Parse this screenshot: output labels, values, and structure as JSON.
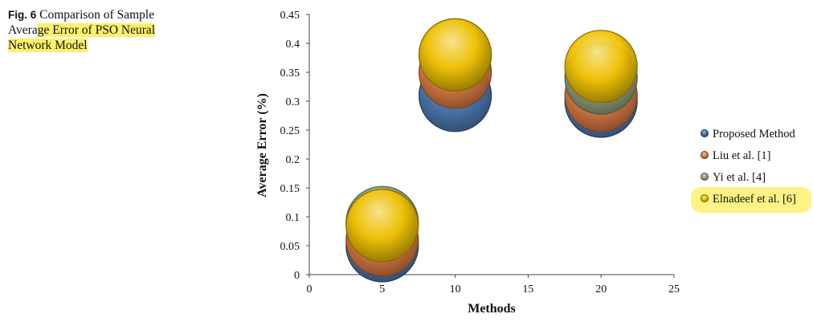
{
  "caption": {
    "fig_label": "Fig. 6",
    "text_part1": "Comparison of Sample",
    "text_part2": "Avera",
    "text_part3": "ge Error of PSO Neural",
    "text_part4": "Network Model"
  },
  "chart_data": {
    "type": "bubble",
    "title": "",
    "xlabel": "Methods",
    "ylabel": "Average Error (%)",
    "xlim": [
      0,
      25
    ],
    "ylim": [
      0,
      0.45
    ],
    "x_ticks": [
      "0",
      "5",
      "10",
      "15",
      "20",
      "25"
    ],
    "y_ticks": [
      "0",
      "0.05",
      "0.1",
      "0.15",
      "0.2",
      "0.25",
      "0.3",
      "0.35",
      "0.4",
      "0.45"
    ],
    "legend_position": "right",
    "series": [
      {
        "name": "Proposed Method",
        "color": "#3f6fa8",
        "points": [
          {
            "x": 5,
            "y": 0.05
          },
          {
            "x": 10,
            "y": 0.31
          },
          {
            "x": 20,
            "y": 0.3
          }
        ]
      },
      {
        "name": "Liu et al. [1]",
        "color": "#e07a3c",
        "points": [
          {
            "x": 5,
            "y": 0.06
          },
          {
            "x": 10,
            "y": 0.35
          },
          {
            "x": 20,
            "y": 0.31
          }
        ]
      },
      {
        "name": "Yi et al. [4]",
        "color": "#8fa07e",
        "points": [
          {
            "x": 5,
            "y": 0.09
          },
          {
            "x": 10,
            "y": 0.38
          },
          {
            "x": 20,
            "y": 0.34
          }
        ]
      },
      {
        "name": "Elnadeef et al. [6]",
        "color": "#f2c200",
        "points": [
          {
            "x": 5,
            "y": 0.085
          },
          {
            "x": 10,
            "y": 0.38
          },
          {
            "x": 20,
            "y": 0.36
          }
        ]
      }
    ]
  }
}
